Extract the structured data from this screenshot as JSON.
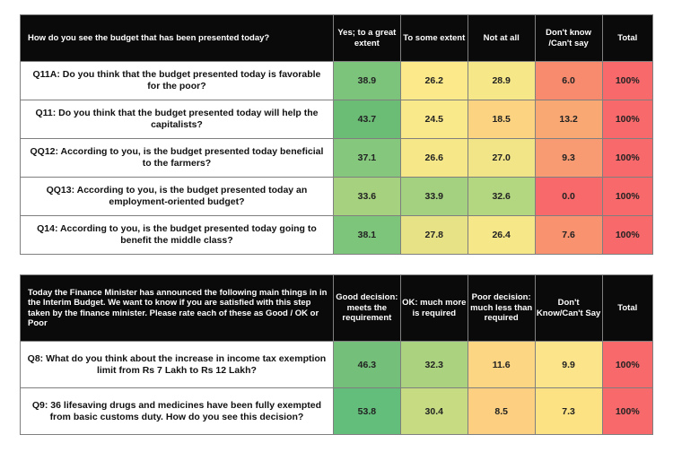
{
  "table1": {
    "header": {
      "question": "How do you see the budget that has been presented today?",
      "columns": [
        "Yes; to a great extent",
        "To some extent",
        "Not at all",
        "Don't know /Can't say",
        "Total"
      ]
    },
    "rows": [
      {
        "question": "Q11A:  Do you think that the budget presented today is favorable for the poor?",
        "values": [
          "38.9",
          "26.2",
          "28.9",
          "6.0",
          "100%"
        ],
        "colors": [
          "#7cc47c",
          "#fbe98a",
          "#f6e888",
          "#f88a6e",
          "#f8696b"
        ]
      },
      {
        "question": "Q11: Do you think that the budget presented today will help the capitalists?",
        "values": [
          "43.7",
          "24.5",
          "18.5",
          "13.2",
          "100%"
        ],
        "colors": [
          "#6bbd76",
          "#f9e98a",
          "#fcd380",
          "#f9a874",
          "#f8696b"
        ]
      },
      {
        "question": "QQ12: According to you, is the budget presented today beneficial to the farmers?",
        "values": [
          "37.1",
          "26.6",
          "27.0",
          "9.3",
          "100%"
        ],
        "colors": [
          "#84c77d",
          "#f6e888",
          "#f1e587",
          "#f89b72",
          "#f8696b"
        ]
      },
      {
        "question": "QQ13: According to you, is the budget presented today an employment-oriented budget?",
        "values": [
          "33.6",
          "33.9",
          "32.6",
          "0.0",
          "100%"
        ],
        "colors": [
          "#a6d27f",
          "#a3d17f",
          "#b3d680",
          "#f8696b",
          "#f8696b"
        ]
      },
      {
        "question": "Q14: According to you, is the budget presented today going to benefit the middle class?",
        "values": [
          "38.1",
          "27.8",
          "26.4",
          "7.6",
          "100%"
        ],
        "colors": [
          "#7ec57c",
          "#e8e286",
          "#f6e888",
          "#f8926f",
          "#f8696b"
        ]
      }
    ]
  },
  "table2": {
    "header": {
      "question": "Today the Finance Minister has announced the following main things in in the Interim Budget. We want to know if you are satisfied with this step taken by the finance minister. Please rate each of these as Good / OK or Poor",
      "columns": [
        "Good decision: meets the requirement",
        "OK: much more is required",
        "Poor decision: much less than required",
        "Don't Know/Can't Say",
        "Total"
      ]
    },
    "rows": [
      {
        "question": "Q8: What do you think about the increase in income tax exemption limit from Rs 7 Lakh to Rs 12 Lakh?",
        "values": [
          "46.3",
          "32.3",
          "11.6",
          "9.9",
          "100%"
        ],
        "colors": [
          "#74c07a",
          "#abd37f",
          "#fcd682",
          "#fbe48a",
          "#f8696b"
        ]
      },
      {
        "question": "Q9: 36 lifesaving drugs and medicines have been fully exempted from basic customs duty. How do you see this decision?",
        "values": [
          "53.8",
          "30.4",
          "8.5",
          "7.3",
          "100%"
        ],
        "colors": [
          "#63be7b",
          "#c6db82",
          "#fcd080",
          "#fde283",
          "#f8696b"
        ]
      }
    ]
  }
}
